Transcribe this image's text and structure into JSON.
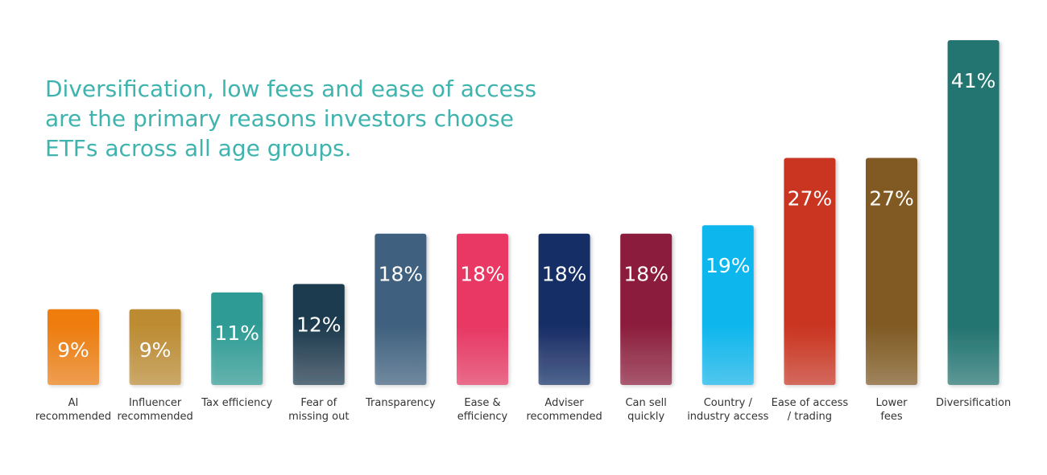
{
  "headline": {
    "lines": [
      "Diversification, low fees and ease of access",
      "are the primary reasons investors choose",
      "ETFs across all age groups."
    ]
  },
  "chart_data": {
    "type": "bar",
    "title": "",
    "xlabel": "",
    "ylabel": "",
    "ylim": [
      0,
      41
    ],
    "grid": false,
    "value_suffix": "%",
    "categories": [
      [
        "AI",
        "recommended"
      ],
      [
        "Influencer",
        "recommended"
      ],
      [
        "Tax efficiency"
      ],
      [
        "Fear of",
        "missing out"
      ],
      [
        "Transparency"
      ],
      [
        "Ease &",
        "efficiency"
      ],
      [
        "Adviser",
        "recommended"
      ],
      [
        "Can sell",
        "quickly"
      ],
      [
        "Country /",
        "industry access"
      ],
      [
        "Ease of access",
        "/ trading"
      ],
      [
        "Lower",
        "fees"
      ],
      [
        "Diversification"
      ]
    ],
    "values": [
      9,
      9,
      11,
      12,
      18,
      18,
      18,
      18,
      19,
      27,
      27,
      41
    ],
    "colors": [
      "#ee7d0e",
      "#bd8c33",
      "#2e9c95",
      "#1f3b4f",
      "#3f617f",
      "#e83763",
      "#152d66",
      "#8c1d3c",
      "#0db7ee",
      "#ca3420",
      "#805a22",
      "#217471"
    ]
  }
}
